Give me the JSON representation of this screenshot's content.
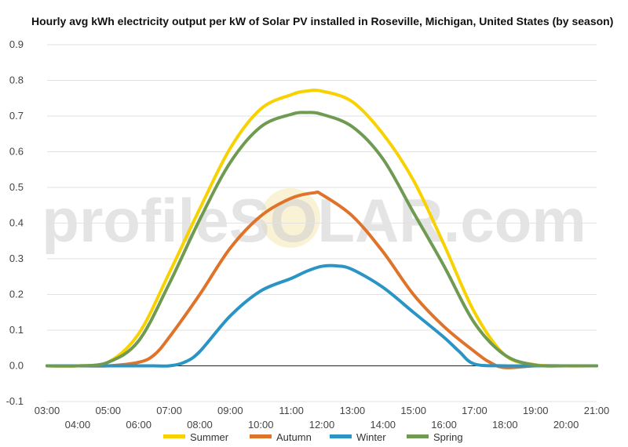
{
  "chart_data": {
    "type": "line",
    "title": "Hourly avg kWh electricity output per kW of Solar PV installed in Roseville, Michigan, United States (by season)",
    "xlabel": "",
    "ylabel": "",
    "x_hours": [
      3,
      4,
      5,
      6,
      7,
      8,
      9,
      10,
      11,
      12,
      13,
      14,
      15,
      16,
      17,
      18,
      19,
      20,
      21
    ],
    "x_labels": [
      "03:00",
      "04:00",
      "05:00",
      "06:00",
      "07:00",
      "08:00",
      "09:00",
      "10:00",
      "11:00",
      "12:00",
      "13:00",
      "14:00",
      "15:00",
      "16:00",
      "17:00",
      "18:00",
      "19:00",
      "20:00",
      "21:00"
    ],
    "xlim": [
      3,
      21
    ],
    "ylim": [
      -0.1,
      0.9
    ],
    "y_ticks": [
      "-0.1",
      "0.0",
      "0.1",
      "0.2",
      "0.3",
      "0.4",
      "0.5",
      "0.6",
      "0.7",
      "0.8",
      "0.9"
    ],
    "grid": true,
    "legend_position": "bottom",
    "series": [
      {
        "name": "Summer",
        "color": "#f7d200",
        "x": [
          3,
          4,
          5,
          6,
          7,
          8,
          9,
          10,
          11,
          11.5,
          12,
          13,
          14,
          15,
          16,
          17,
          18,
          19,
          20,
          21
        ],
        "y": [
          0,
          0,
          0.01,
          0.09,
          0.26,
          0.44,
          0.61,
          0.72,
          0.76,
          0.77,
          0.77,
          0.74,
          0.65,
          0.52,
          0.34,
          0.15,
          0.03,
          0.003,
          0,
          0
        ]
      },
      {
        "name": "Autumn",
        "color": "#e0732a",
        "x": [
          3,
          4,
          5,
          6,
          6.5,
          7,
          8,
          9,
          10,
          11,
          11.75,
          12,
          13,
          14,
          15,
          16,
          17,
          17.5,
          18,
          19,
          20,
          21
        ],
        "y": [
          0,
          0,
          0,
          0.01,
          0.03,
          0.08,
          0.2,
          0.33,
          0.42,
          0.47,
          0.485,
          0.48,
          0.42,
          0.32,
          0.2,
          0.11,
          0.04,
          0.01,
          -0.005,
          0,
          0,
          0
        ]
      },
      {
        "name": "Winter",
        "color": "#2a95c5",
        "x": [
          3,
          4,
          5,
          6,
          6.5,
          7,
          7.5,
          8,
          9,
          10,
          11,
          11.5,
          12,
          12.5,
          13,
          14,
          15,
          16,
          16.5,
          17,
          18,
          19,
          20,
          21
        ],
        "y": [
          0,
          0,
          0,
          0,
          0,
          0,
          0.01,
          0.04,
          0.14,
          0.21,
          0.245,
          0.265,
          0.279,
          0.28,
          0.27,
          0.22,
          0.15,
          0.08,
          0.04,
          0.005,
          0,
          0,
          0,
          0
        ]
      },
      {
        "name": "Spring",
        "color": "#6f9a52",
        "x": [
          3,
          4,
          5,
          6,
          7,
          8,
          9,
          10,
          11,
          11.5,
          12,
          13,
          14,
          15,
          16,
          17,
          18,
          19,
          20,
          21
        ],
        "y": [
          0,
          0,
          0.01,
          0.07,
          0.23,
          0.41,
          0.57,
          0.67,
          0.705,
          0.71,
          0.705,
          0.67,
          0.58,
          0.43,
          0.28,
          0.12,
          0.03,
          0.002,
          0,
          0
        ]
      }
    ]
  },
  "watermark": {
    "text": "profileSOLAR.com"
  }
}
